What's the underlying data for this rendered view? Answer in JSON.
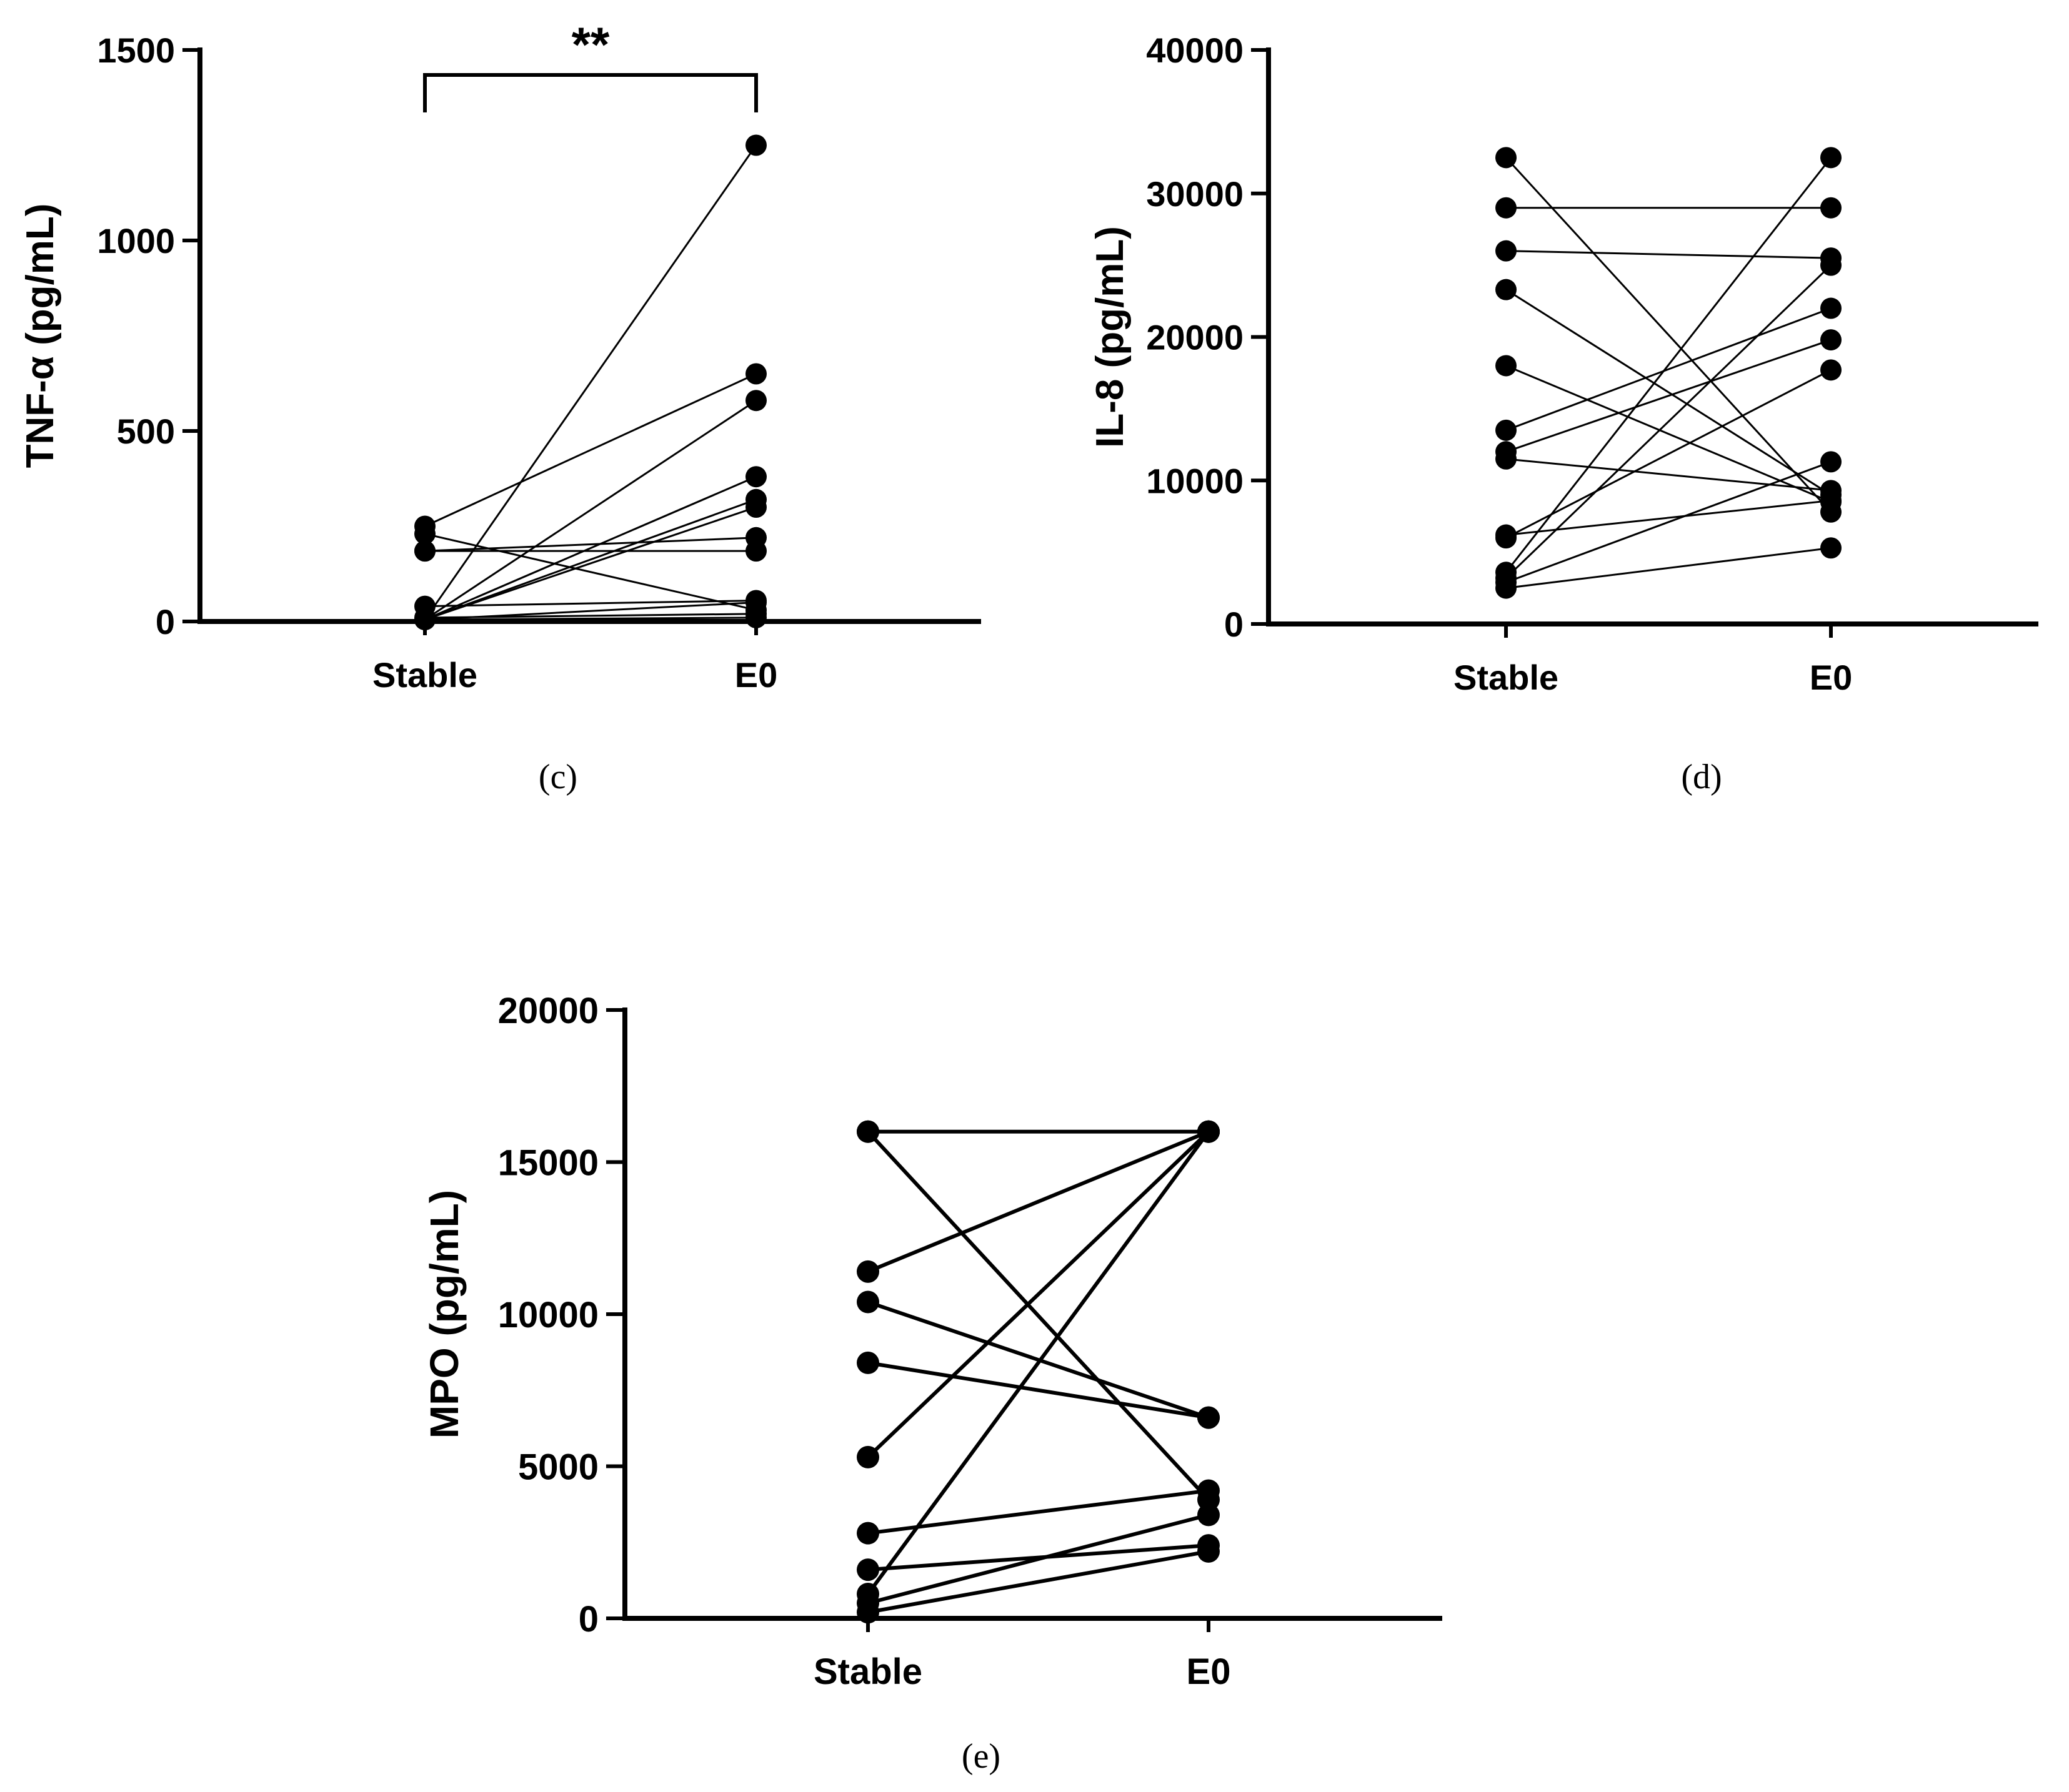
{
  "chart_data": [
    {
      "type": "line",
      "panel": "c",
      "caption": "(c)",
      "ylabel": "TNF-α (pg/mL)",
      "ylim": [
        0,
        1500
      ],
      "yticks": [
        "0",
        "500",
        "1000",
        "1500"
      ],
      "ytick_values": [
        0,
        500,
        1000,
        1500
      ],
      "categories": [
        "Stable",
        "E0"
      ],
      "significance": "**",
      "pairs": [
        [
          5,
          1250
        ],
        [
          250,
          650
        ],
        [
          5,
          580
        ],
        [
          230,
          30
        ],
        [
          5,
          380
        ],
        [
          5,
          320
        ],
        [
          5,
          300
        ],
        [
          185,
          220
        ],
        [
          185,
          185
        ],
        [
          40,
          55
        ],
        [
          5,
          50
        ],
        [
          10,
          20
        ],
        [
          5,
          10
        ]
      ]
    },
    {
      "type": "line",
      "panel": "d",
      "caption": "(d)",
      "ylabel": "IL-8 (pg/mL)",
      "ylim": [
        0,
        40000
      ],
      "yticks": [
        "0",
        "10000",
        "20000",
        "30000",
        "40000"
      ],
      "ytick_values": [
        0,
        10000,
        20000,
        30000,
        40000
      ],
      "categories": [
        "Stable",
        "E0"
      ],
      "pairs": [
        [
          32500,
          7800
        ],
        [
          29000,
          29000
        ],
        [
          26000,
          25500
        ],
        [
          23300,
          9000
        ],
        [
          18000,
          8500
        ],
        [
          13500,
          22000
        ],
        [
          12000,
          19800
        ],
        [
          11500,
          9300
        ],
        [
          6200,
          8600
        ],
        [
          6000,
          17700
        ],
        [
          3600,
          32500
        ],
        [
          3200,
          25000
        ],
        [
          2900,
          11300
        ],
        [
          2500,
          5300
        ]
      ]
    },
    {
      "type": "line",
      "panel": "e",
      "caption": "(e)",
      "ylabel": "MPO (pg/mL)",
      "ylim": [
        0,
        20000
      ],
      "yticks": [
        "0",
        "5000",
        "10000",
        "15000",
        "20000"
      ],
      "ytick_values": [
        0,
        5000,
        10000,
        15000,
        20000
      ],
      "categories": [
        "Stable",
        "E0"
      ],
      "pairs": [
        [
          16000,
          16000
        ],
        [
          16000,
          3900
        ],
        [
          11400,
          16000
        ],
        [
          10400,
          6600
        ],
        [
          8400,
          6600
        ],
        [
          5300,
          16000
        ],
        [
          2800,
          4200
        ],
        [
          1600,
          2400
        ],
        [
          800,
          16000
        ],
        [
          500,
          3400
        ],
        [
          200,
          2200
        ]
      ]
    }
  ]
}
